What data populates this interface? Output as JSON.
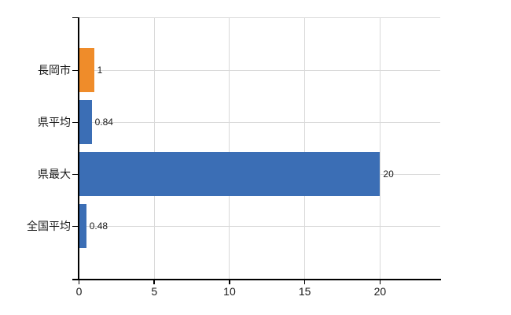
{
  "chart_data": {
    "type": "bar",
    "orientation": "horizontal",
    "title": "",
    "xlabel": "",
    "ylabel": "",
    "legend": "none",
    "grid": true,
    "xlim": [
      0,
      24
    ],
    "x_ticks": [
      0,
      5,
      10,
      15,
      20
    ],
    "x_tick_labels": [
      "0",
      "5",
      "10",
      "15",
      "20"
    ],
    "categories": [
      "長岡市",
      "県平均",
      "県最大",
      "全国平均"
    ],
    "values": [
      1,
      0.84,
      20,
      0.48
    ],
    "bars": [
      {
        "category": "長岡市",
        "value": 1,
        "label": "1",
        "color": "#ef8c2a"
      },
      {
        "category": "県平均",
        "value": 0.84,
        "label": "0.84",
        "color": "#3b6eb5"
      },
      {
        "category": "県最大",
        "value": 20,
        "label": "20",
        "color": "#3b6eb5"
      },
      {
        "category": "全国平均",
        "value": 0.48,
        "label": "0.48",
        "color": "#3b6eb5"
      }
    ]
  },
  "colors": {
    "bar_orange": "#ef8c2a",
    "bar_blue": "#3b6eb5",
    "grid": "#d9d9d9",
    "axis": "#000000",
    "text": "#1a1a1a",
    "background": "#ffffff"
  }
}
